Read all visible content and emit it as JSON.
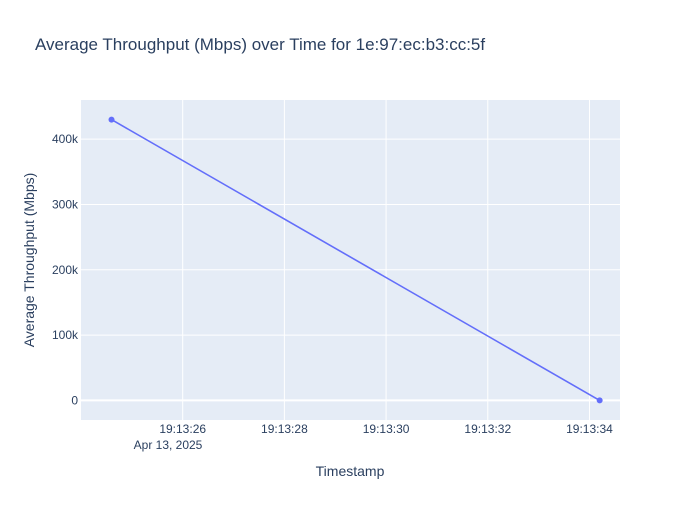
{
  "chart_data": {
    "type": "line",
    "title": "Average Throughput (Mbps) over Time for 1e:97:ec:b3:cc:5f",
    "xlabel": "Timestamp",
    "ylabel": "Average Throughput (Mbps)",
    "x_tick_labels": [
      "19:13:26",
      "19:13:28",
      "19:13:30",
      "19:13:32",
      "19:13:34"
    ],
    "x_date_label": "Apr 13, 2025",
    "y_tick_labels": [
      "0",
      "100k",
      "200k",
      "300k",
      "400k"
    ],
    "y_ticks": [
      0,
      100000,
      200000,
      300000,
      400000
    ],
    "ylim": [
      -30000,
      460000
    ],
    "xlim": [
      "2025-04-13 19:13:24.0",
      "2025-04-13 19:13:34.6"
    ],
    "grid": true,
    "series": [
      {
        "x": [
          "2025-04-13 19:13:24.6",
          "2025-04-13 19:13:34.2"
        ],
        "y": [
          430000,
          0
        ]
      }
    ]
  },
  "colors": {
    "plot_background": "#e5ecf6",
    "grid": "#ffffff",
    "line": "#636efa",
    "text": "#2a3f5f"
  }
}
